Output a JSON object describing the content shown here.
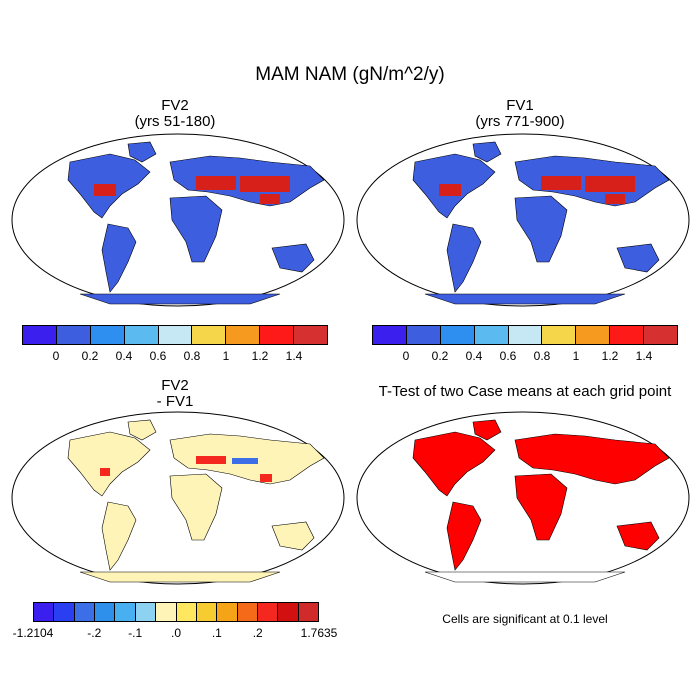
{
  "title": "MAM NAM (gN/m^2/y)",
  "panels": [
    {
      "title": "FV2",
      "subtitle": "(yrs 51-180)"
    },
    {
      "title": "FV1",
      "subtitle": "(yrs 771-900)"
    },
    {
      "title": "FV2",
      "subtitle": "- FV1"
    },
    {
      "title": "T-Test of two Case means at each grid point",
      "subtitle": ""
    }
  ],
  "colorbar_top": {
    "colors": [
      "#3a1fef",
      "#3e5ee0",
      "#2f8ff0",
      "#5bbbf0",
      "#c6e8f5",
      "#f5d64a",
      "#f59a1e",
      "#ff1a1a",
      "#d63030"
    ],
    "labels": [
      "0",
      "0.2",
      "0.4",
      "0.6",
      "0.8",
      "1",
      "1.2",
      "1.4"
    ]
  },
  "colorbar_diff": {
    "colors": [
      "#3a1fef",
      "#2a3ff2",
      "#3c6ee8",
      "#2e90ea",
      "#48b0f0",
      "#8ed2f2",
      "#fff4b8",
      "#ffe860",
      "#f7cc30",
      "#f5a418",
      "#f56a18",
      "#f52820",
      "#d31010",
      "#d02a2a"
    ],
    "labels": [
      "-1.2104",
      "-.2",
      "-.1",
      ".0",
      ".1",
      ".2",
      "1.7635"
    ]
  },
  "significance_note": "Cells are significant at 0.1 level",
  "map_colors": {
    "ocean": "#ffffff",
    "land_low": "#3e5ee0",
    "high": "#d8201a",
    "orange": "#f59a1e",
    "diff_land": "#fff4b8",
    "diff_high": "#f52820",
    "diff_low": "#3c6ee8",
    "signif": "#ff0000"
  }
}
